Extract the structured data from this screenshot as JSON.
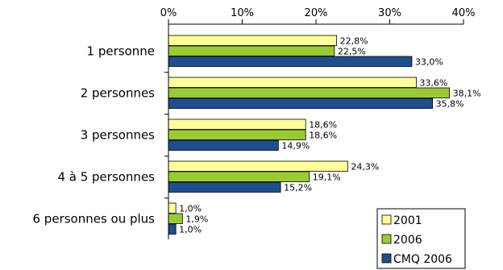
{
  "chart_data": {
    "type": "bar",
    "orientation": "horizontal",
    "categories": [
      "1 personne",
      "2 personnes",
      "3 personnes",
      "4 à 5 personnes",
      "6 personnes ou plus"
    ],
    "series": [
      {
        "name": "2001",
        "values": [
          22.8,
          33.6,
          18.6,
          24.3,
          1.0
        ],
        "labels": [
          "22,8%",
          "33,6%",
          "18,6%",
          "24,3%",
          "1,0%"
        ],
        "color": "#FFFF99"
      },
      {
        "name": "2006",
        "values": [
          22.5,
          38.1,
          18.6,
          19.1,
          1.9
        ],
        "labels": [
          "22,5%",
          "38,1%",
          "18,6%",
          "19,1%",
          "1,9%"
        ],
        "color": "#99CC33"
      },
      {
        "name": "CMQ 2006",
        "values": [
          33.0,
          35.8,
          14.9,
          15.2,
          1.0
        ],
        "labels": [
          "33,0%",
          "35,8%",
          "14,9%",
          "15,2%",
          "1,0%"
        ],
        "color": "#1F4E8C"
      }
    ],
    "xlim": [
      0,
      40
    ],
    "xticks": [
      0,
      10,
      20,
      30,
      40
    ],
    "xtick_labels": [
      "0%",
      "10%",
      "20%",
      "30%",
      "40%"
    ],
    "legend_position": "bottom-right",
    "grid": false,
    "title": "",
    "xlabel": "",
    "ylabel": ""
  }
}
